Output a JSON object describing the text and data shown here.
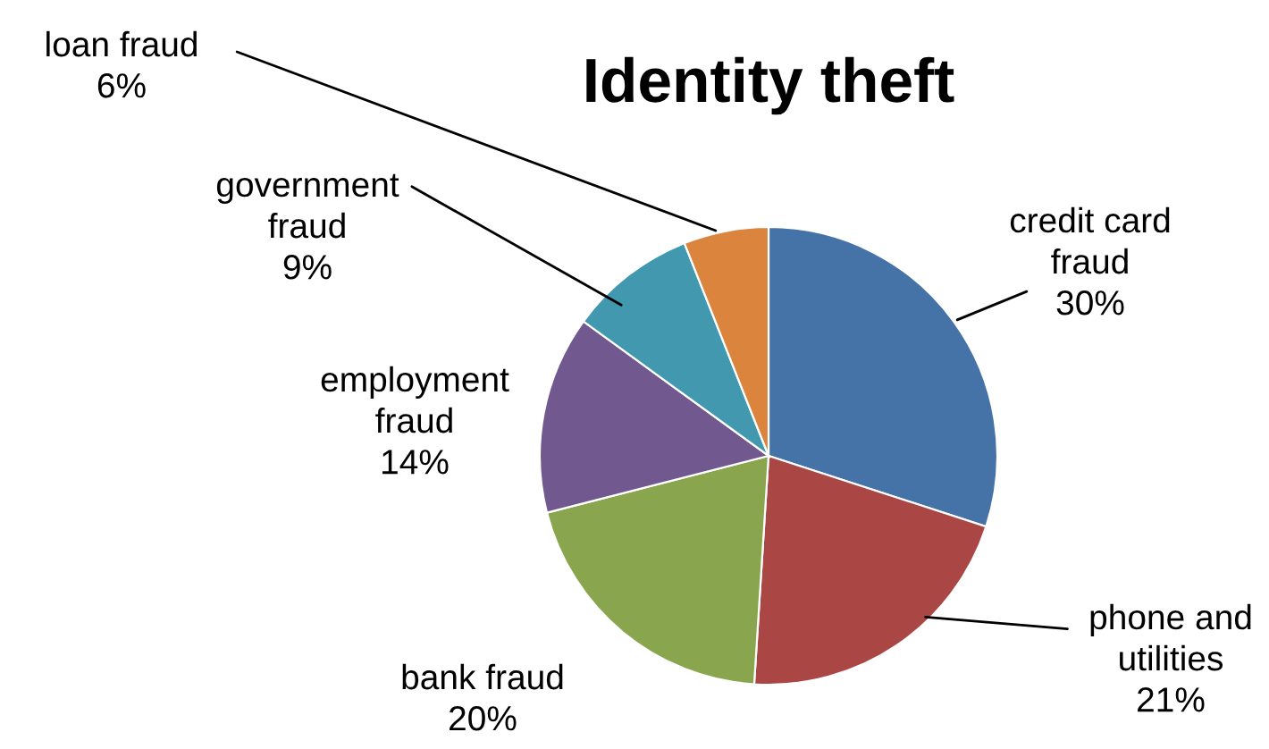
{
  "chart_data": {
    "type": "pie",
    "title": "Identity theft",
    "categories": [
      "credit card fraud",
      "phone and utilities",
      "bank fraud",
      "employment fraud",
      "government fraud",
      "loan fraud"
    ],
    "values": [
      30,
      21,
      20,
      14,
      9,
      6
    ],
    "colors": [
      "#4572a7",
      "#aa4643",
      "#89a54e",
      "#71588f",
      "#4198af",
      "#db843d"
    ],
    "value_labels": [
      "30%",
      "21%",
      "20%",
      "14%",
      "9%",
      "6%"
    ]
  }
}
